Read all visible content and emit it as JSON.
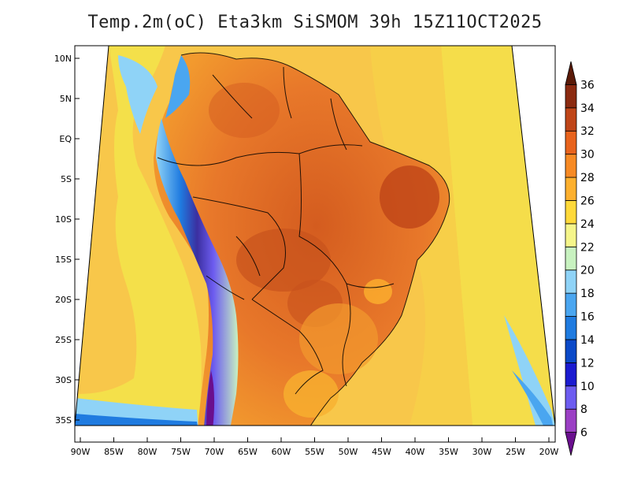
{
  "title": "Temp.2m(oC) Eta3km SiSMOM 39h 15Z11OCT2025",
  "lat_ticks": [
    "10N",
    "5N",
    "EQ",
    "5S",
    "10S",
    "15S",
    "20S",
    "25S",
    "30S",
    "35S"
  ],
  "lon_ticks": [
    "90W",
    "85W",
    "80W",
    "75W",
    "70W",
    "65W",
    "60W",
    "55W",
    "50W",
    "45W",
    "40W",
    "35W",
    "30W",
    "25W",
    "20W"
  ],
  "colorbar": {
    "labels": [
      "6",
      "8",
      "10",
      "12",
      "14",
      "16",
      "18",
      "20",
      "22",
      "24",
      "26",
      "28",
      "30",
      "32",
      "34",
      "36"
    ],
    "colors": [
      "#6a0f8e",
      "#9b3fc4",
      "#6d5cf0",
      "#1b1bd0",
      "#0b49c8",
      "#1f7be0",
      "#4aa6f0",
      "#8fd3f7",
      "#c8f2c0",
      "#f5f58a",
      "#ffd93a",
      "#fdb02e",
      "#f78a24",
      "#e8631d",
      "#bf4518",
      "#8b2a10",
      "#5a1a08"
    ]
  },
  "colors": {
    "ocean_warm": "#f8c74a",
    "ocean_mild": "#f4e04a",
    "land_hot": "#e8782a",
    "land_hotter": "#c8521c",
    "andes_cold": "#3b2fa0",
    "coast_cool": "#8fd3f7",
    "frame": "#000000"
  }
}
